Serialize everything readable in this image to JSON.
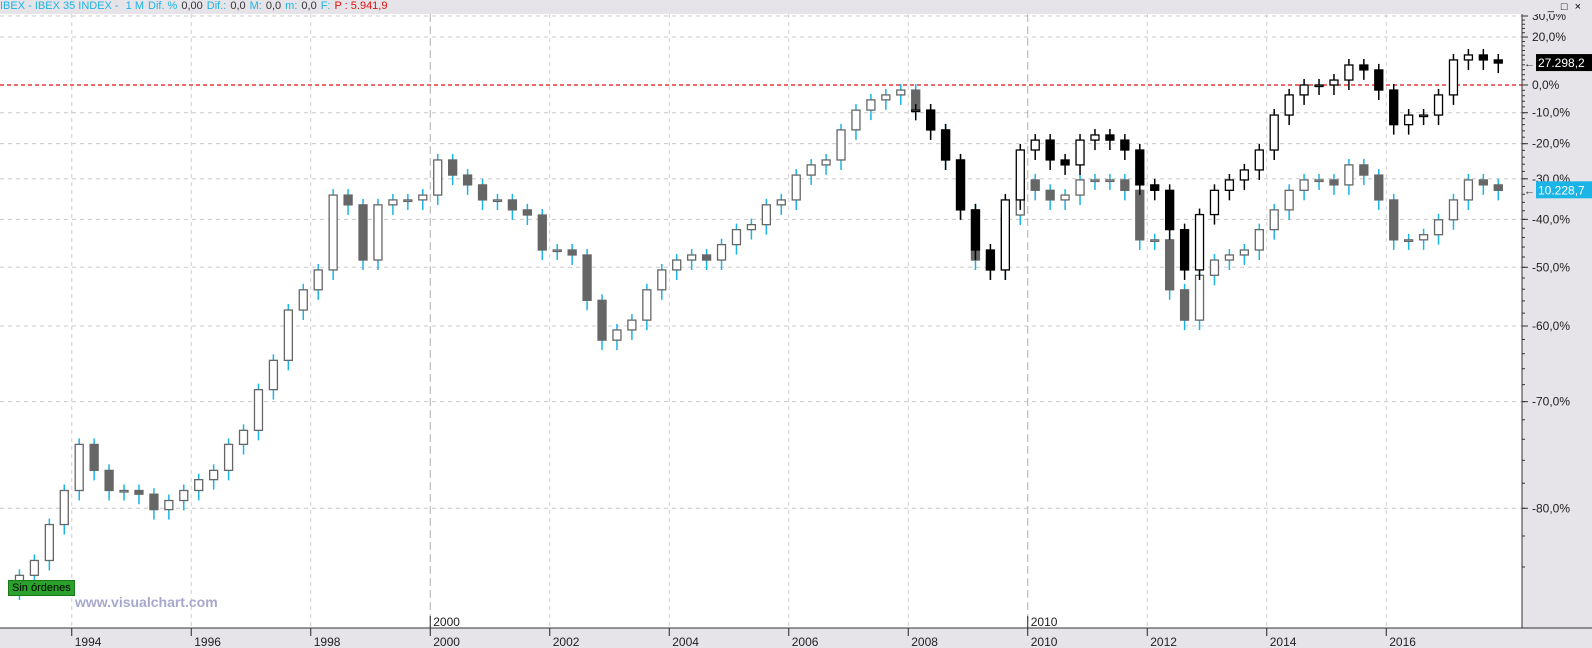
{
  "header": {
    "symbol": "IBEX - IBEX 35 INDEX - ",
    "period": "1 M",
    "dif_pct_label": "Dif. %",
    "dif_pct_value": "0,00",
    "dif_label": "Dif.:",
    "dif_value": "0,0",
    "max_label": "M:",
    "max_value": "0,0",
    "min_label": "m:",
    "min_value": "0,0",
    "f_label": "F:",
    "price": "P : 5.941,9"
  },
  "window_buttons": {
    "minimize": "_",
    "maximize": "□",
    "close": "×"
  },
  "badge": "Sin órdenes",
  "watermark": "www.visualchart.com",
  "chart_data": {
    "type": "candlestick",
    "y_scale": "log (percent change)",
    "ylim": [
      -84.5,
      30
    ],
    "y_ticks": [
      30,
      20,
      0,
      -10,
      -20,
      -30,
      -40,
      -50,
      -60,
      -70,
      -80
    ],
    "y_tick_labels": [
      "30,0%",
      "20,0%",
      "0,0%",
      "-10,0%",
      "-20,0%",
      "-30,0%",
      "-40,0%",
      "-50,0%",
      "-60,0%",
      "-70,0%",
      "-80,0%"
    ],
    "reference_line": {
      "value": 0,
      "color": "#e01010",
      "style": "dashed"
    },
    "x_ticks": [
      1994,
      1996,
      1998,
      2000,
      2002,
      2004,
      2006,
      2008,
      2010,
      2012,
      2014,
      2016
    ],
    "x_tick_labels": [
      "1994",
      "1996",
      "1998",
      "2000",
      "2002",
      "2004",
      "2006",
      "2008",
      "2010",
      "2012",
      "2014",
      "2016"
    ],
    "decade_labels": [
      "2000",
      "2010"
    ],
    "decade_ticks": [
      2000,
      2010
    ],
    "xlim": [
      1992.9,
      2017.95
    ],
    "grid": true,
    "series": [
      {
        "color": "#1ab4e6",
        "body_color": "#666666",
        "last_label": "10.228,7",
        "start": 1993,
        "step_years": 0.25,
        "closes": [
          -84.5,
          -83.6,
          -81.2,
          -78.6,
          -74.5,
          -76.9,
          -78.6,
          -78.6,
          -78.9,
          -80.1,
          -79.4,
          -78.6,
          -77.7,
          -76.9,
          -74.5,
          -73.1,
          -68.6,
          -64.9,
          -57.5,
          -54.1,
          -50.5,
          -34.2,
          -36.6,
          -48.6,
          -36.6,
          -35.4,
          -35.4,
          -34.2,
          -24.8,
          -29.0,
          -31.6,
          -35.4,
          -35.4,
          -37.8,
          -39.0,
          -46.6,
          -46.6,
          -47.6,
          -55.9,
          -62.1,
          -60.6,
          -59.1,
          -54.1,
          -50.5,
          -48.6,
          -47.6,
          -48.6,
          -45.5,
          -42.3,
          -41.2,
          -36.6,
          -35.4,
          -29.0,
          -26.2,
          -24.8,
          -15.7,
          -9.1,
          -5.5,
          -3.7,
          -1.9,
          -9.1,
          -15.7,
          -24.8,
          -37.8,
          -48.6,
          -50.5,
          -39.0,
          -30.3,
          -33.0,
          -35.4,
          -34.2,
          -30.3,
          -30.3,
          -30.3,
          -33.0,
          -44.5,
          -44.5,
          -54.1,
          -59.1,
          -51.5,
          -48.6,
          -47.6,
          -46.6,
          -42.3,
          -37.8,
          -33.0,
          -30.3,
          -30.3,
          -31.6,
          -26.2,
          -29.0,
          -35.4,
          -44.5,
          -44.5,
          -43.4,
          -40.1,
          -35.4,
          -30.3,
          -31.6,
          -33.0
        ]
      },
      {
        "color": "#000000",
        "body_color": "#000000",
        "last_label": "27.298,2",
        "start": 2008,
        "step_years": 0.25,
        "closes": [
          -9.1,
          -15.7,
          -24.8,
          -37.8,
          -46.6,
          -50.5,
          -35.4,
          -21.9,
          -18.9,
          -24.8,
          -26.2,
          -18.9,
          -17.3,
          -18.9,
          -21.9,
          -31.6,
          -33.0,
          -42.3,
          -50.5,
          -38.9,
          -33.0,
          -30.3,
          -27.6,
          -21.9,
          -10.8,
          -3.7,
          0,
          0,
          1.9,
          7.9,
          5.9,
          -1.9,
          -14.0,
          -10.8,
          -10.8,
          -3.7,
          10.0,
          12.1,
          10.0,
          8.7
        ]
      }
    ]
  }
}
